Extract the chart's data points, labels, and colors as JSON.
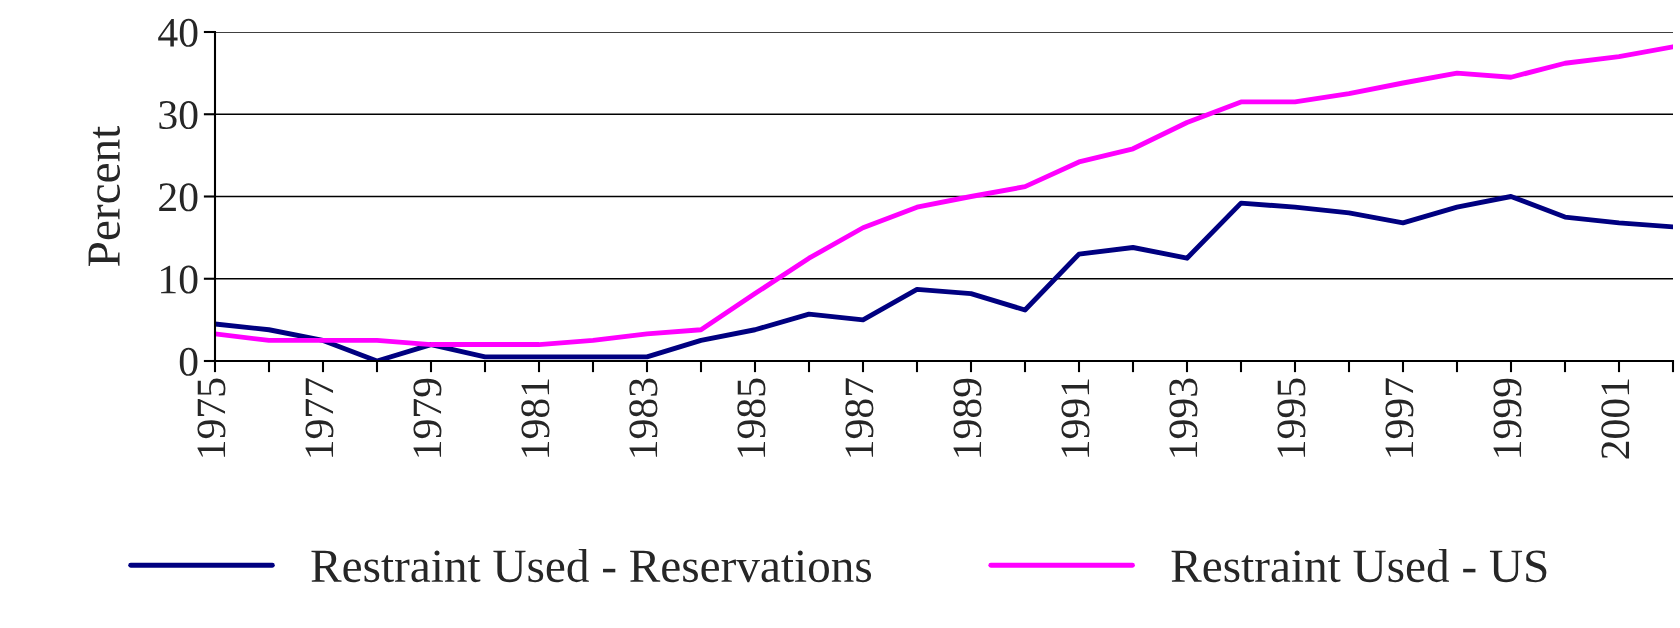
{
  "chart_data": {
    "type": "line",
    "ylabel": "Percent",
    "categories": [
      "1975",
      null,
      "1977",
      null,
      "1979",
      null,
      "1981",
      null,
      "1983",
      null,
      "1985",
      null,
      "1987",
      null,
      "1989",
      null,
      "1991",
      null,
      "1993",
      null,
      "1995",
      null,
      "1997",
      null,
      "1999",
      null,
      "2001",
      null
    ],
    "series": [
      {
        "name": "Restraint Used - Reservations",
        "color": "#000080",
        "values": [
          4.5,
          3.8,
          2.5,
          0,
          2,
          0.5,
          0.5,
          0.5,
          0.5,
          2.5,
          3.8,
          5.7,
          5,
          8.7,
          8.2,
          6.2,
          13,
          13.8,
          12.5,
          19.2,
          18.7,
          18,
          16.8,
          18.7,
          20,
          17.5,
          16.8,
          16.3
        ]
      },
      {
        "name": "Restraint Used - US",
        "color": "#ff00ff",
        "values": [
          3.3,
          2.5,
          2.5,
          2.5,
          2,
          2,
          2,
          2.5,
          3.3,
          3.8,
          8.2,
          12.5,
          16.2,
          18.7,
          20,
          21.2,
          24.2,
          25.8,
          29,
          31.5,
          31.5,
          32.5,
          33.8,
          35,
          34.5,
          36.2,
          37,
          38.2
        ]
      }
    ],
    "ylim": [
      0,
      40
    ],
    "yticks": [
      0,
      10,
      20,
      30,
      40
    ],
    "grid": "y",
    "legend": "bottom",
    "marker": "none",
    "line_style": "solid"
  }
}
